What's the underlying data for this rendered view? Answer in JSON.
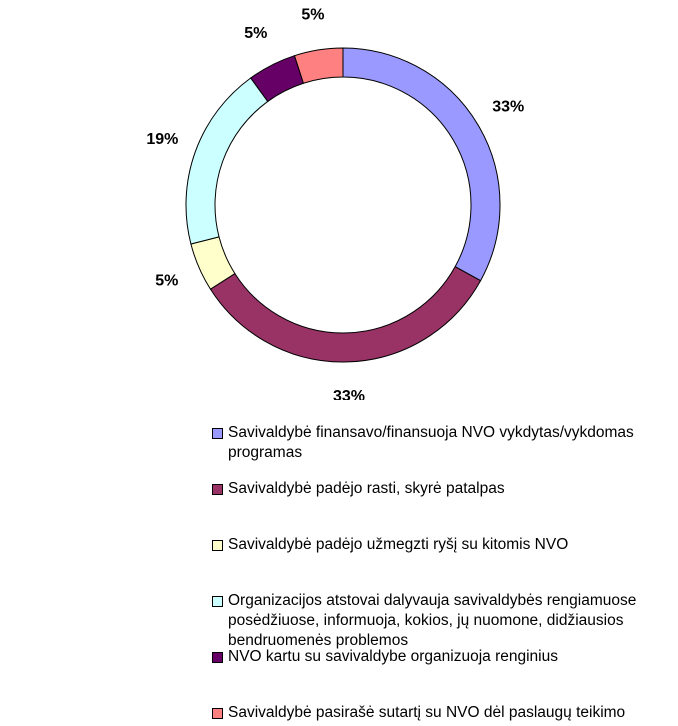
{
  "chart_data": {
    "type": "donut",
    "categories": [
      "Savivaldybė finansavo/finansuoja NVO vykdytas/vykdomas programas",
      "Savivaldybė padėjo rasti, skyrė patalpas",
      "Savivaldybė padėjo užmegzti ryšį su kitomis NVO",
      "Organizacijos atstovai dalyvauja savivaldybės rengiamuose posėdžiuose, informuoja, kokios, jų nuomone, didžiausios bendruomenės problemos",
      "NVO kartu su savivaldybe organizuoja renginius",
      "Savivaldybė pasirašė sutartį su NVO dėl paslaugų teikimo"
    ],
    "values": [
      33,
      33,
      5,
      19,
      5,
      5
    ],
    "value_labels": [
      "33%",
      "33%",
      "5%",
      "19%",
      "5%",
      "5%"
    ],
    "colors": [
      "#9999ff",
      "#993366",
      "#ffffcc",
      "#ccffff",
      "#660066",
      "#ff8080"
    ]
  }
}
